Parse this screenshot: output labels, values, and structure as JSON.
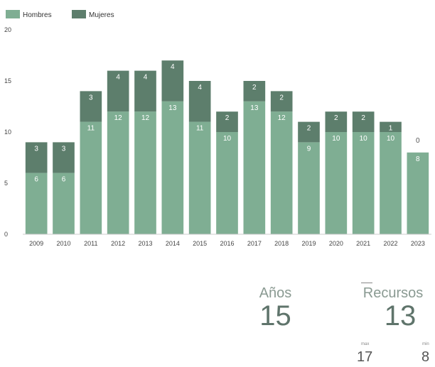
{
  "chart_data": {
    "type": "bar",
    "stacked": true,
    "categories": [
      "2009",
      "2010",
      "2011",
      "2012",
      "2013",
      "2014",
      "2015",
      "2016",
      "2017",
      "2018",
      "2019",
      "2020",
      "2021",
      "2022",
      "2023"
    ],
    "series": [
      {
        "name": "Hombres",
        "color": "#7fae93",
        "values": [
          6,
          6,
          11,
          12,
          12,
          13,
          11,
          10,
          13,
          12,
          9,
          10,
          10,
          10,
          8
        ]
      },
      {
        "name": "Mujeres",
        "color": "#5d7e6c",
        "values": [
          3,
          3,
          3,
          4,
          4,
          4,
          4,
          2,
          2,
          2,
          2,
          2,
          2,
          1,
          0
        ]
      }
    ],
    "ylim": [
      0,
      20
    ],
    "yticks": [
      0,
      5,
      10,
      15,
      20
    ],
    "legend": "top-left",
    "grid": false
  },
  "kpis": {
    "years": {
      "label": "Años",
      "value": "15"
    },
    "resources": {
      "label": "Recursos",
      "value": "13"
    },
    "max": {
      "label": "max",
      "value": "17"
    },
    "min": {
      "label": "min",
      "value": "8"
    }
  }
}
